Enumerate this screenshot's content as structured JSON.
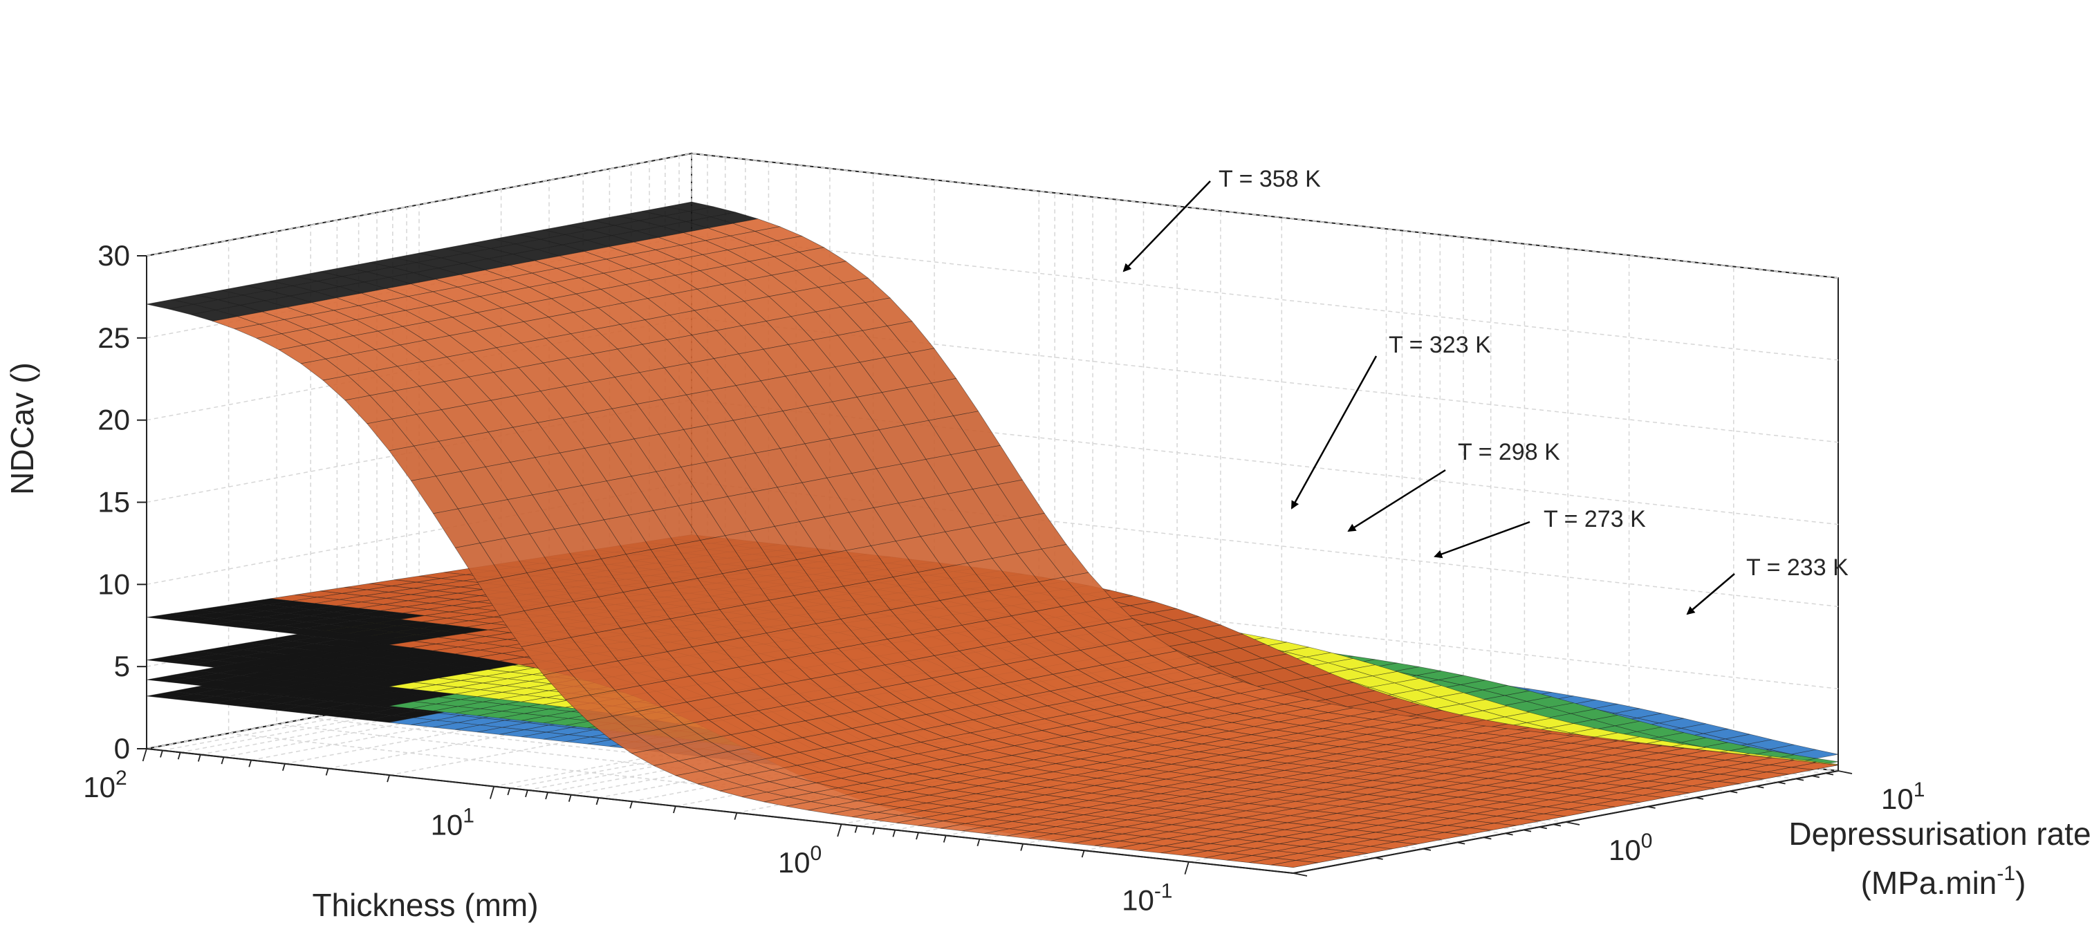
{
  "chart_data": {
    "type": "surface3d",
    "title": "",
    "xlabel": "Thickness (mm)",
    "ylabel": "Depressurisation rate",
    "ylabel_units": "(MPa.min",
    "ylabel_units_exp": "-1",
    "ylabel_units_close": ")",
    "zlabel": "NDCav ()",
    "x_scale": "log",
    "y_scale": "log",
    "xlim": [
      0.05,
      100
    ],
    "ylim": [
      0.1,
      10
    ],
    "zlim": [
      0,
      30
    ],
    "x_ticks": [
      {
        "base": "10",
        "exp": "2",
        "value": 100
      },
      {
        "base": "10",
        "exp": "1",
        "value": 10
      },
      {
        "base": "10",
        "exp": "0",
        "value": 1
      },
      {
        "base": "10",
        "exp": "-1",
        "value": 0.1
      }
    ],
    "y_ticks": [
      {
        "base": "10",
        "exp": "0",
        "value": 1
      },
      {
        "base": "10",
        "exp": "1",
        "value": 10
      }
    ],
    "z_ticks": [
      {
        "label": "0",
        "value": 0
      },
      {
        "label": "5",
        "value": 5
      },
      {
        "label": "10",
        "value": 10
      },
      {
        "label": "15",
        "value": 15
      },
      {
        "label": "20",
        "value": 20
      },
      {
        "label": "25",
        "value": 25
      },
      {
        "label": "30",
        "value": 30
      }
    ],
    "grid": true,
    "series": [
      {
        "name": "T = 233 K",
        "temperature_K": 233,
        "color": "#3d7fc4",
        "plateau_ndcav": 3.2,
        "transition_log10_thickness": -1.0,
        "transition_width": 0.25,
        "plateau_decline": 0.0
      },
      {
        "name": "T = 273 K",
        "temperature_K": 273,
        "color": "#3f9e4d",
        "plateau_ndcav": 4.2,
        "transition_log10_thickness": -0.6,
        "transition_width": 0.25,
        "plateau_decline": 0.05
      },
      {
        "name": "T = 298 K",
        "temperature_K": 298,
        "color": "#e3e62b",
        "plateau_ndcav": 5.4,
        "transition_log10_thickness": -0.15,
        "transition_width": 0.25,
        "plateau_decline": 0.1
      },
      {
        "name": "T = 323 K",
        "temperature_K": 323,
        "color": "#c45a2b",
        "plateau_ndcav": 8.0,
        "transition_log10_thickness": 0.3,
        "transition_width": 0.22,
        "plateau_decline": 0.15
      },
      {
        "name": "T = 358 K",
        "temperature_K": 358,
        "color": "#d46633",
        "plateau_ndcav": 27.5,
        "transition_log10_thickness": 1.1,
        "transition_width": 0.22,
        "plateau_decline": 0.0
      }
    ],
    "annotations": [
      {
        "text": "T = 358 K",
        "series": "T = 358 K"
      },
      {
        "text": "T = 323 K",
        "series": "T = 323 K"
      },
      {
        "text": "T = 298 K",
        "series": "T = 298 K"
      },
      {
        "text": "T = 273 K",
        "series": "T = 273 K"
      },
      {
        "text": "T = 233 K",
        "series": "T = 233 K"
      }
    ]
  }
}
